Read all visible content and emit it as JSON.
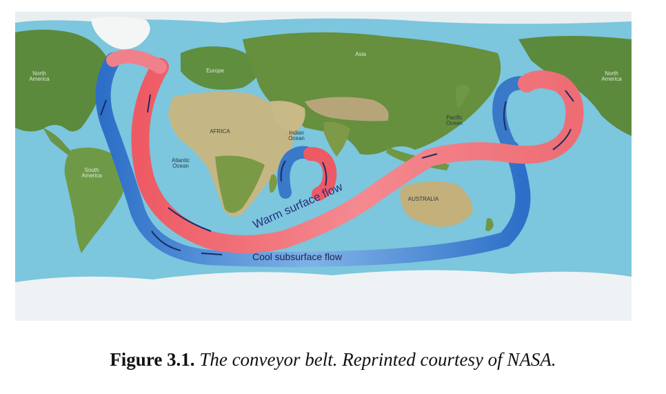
{
  "map": {
    "labels": {
      "north_america": "North\nAmerica",
      "south_america": "South\nAmerica",
      "europe": "Europe",
      "asia": "Asia",
      "africa": "AFRICA",
      "atlantic": "Atlantic\nOcean",
      "indian": "Indian\nOcean",
      "pacific": "Pacific\nOcean",
      "australia": "AUSTRALIA",
      "right_edge": "North\nAmerica"
    },
    "flows": {
      "warm": "Warm surface flow",
      "cool": "Cool subsurface flow"
    },
    "colors": {
      "ocean": "#7cc4dc",
      "warm": "#f0646e",
      "cool": "#2e6fc4"
    }
  },
  "caption": {
    "figure": "Figure 3.1.",
    "text": "The conveyor belt. Reprinted courtesy of NASA."
  }
}
